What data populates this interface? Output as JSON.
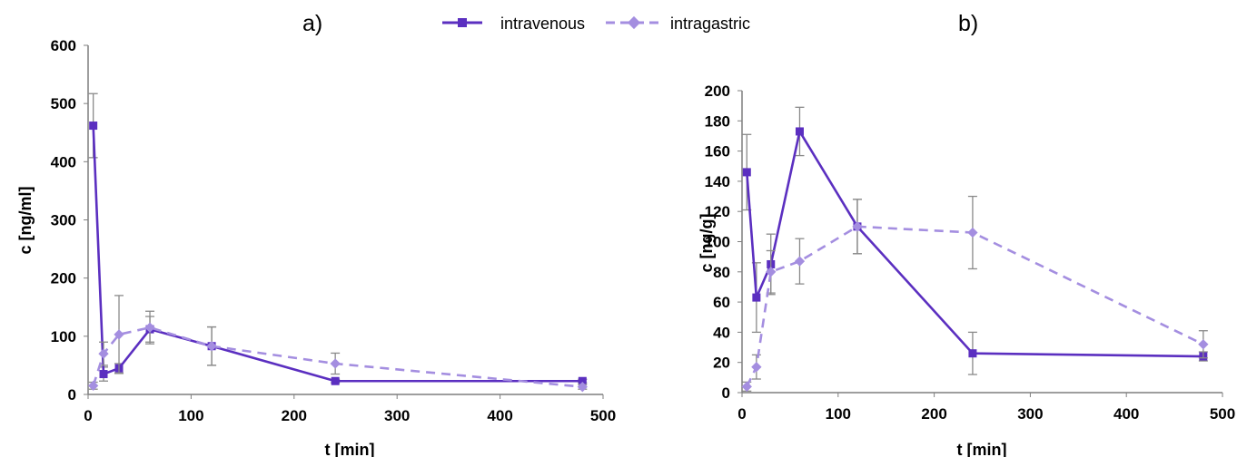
{
  "legend": {
    "entries": [
      {
        "label": "intravenous",
        "color": "#5b2fc0",
        "style": "solid",
        "marker": "square"
      },
      {
        "label": "intragastric",
        "color": "#a48ee0",
        "style": "dashed",
        "marker": "diamond"
      }
    ]
  },
  "chart_data": [
    {
      "type": "line",
      "panel_label": "a)",
      "xlabel": "t [min]",
      "ylabel": "c [ng/ml]",
      "xlim": [
        0,
        500
      ],
      "ylim": [
        0,
        600
      ],
      "xticks": [
        0,
        100,
        200,
        300,
        400,
        500
      ],
      "yticks": [
        0,
        100,
        200,
        300,
        400,
        500,
        600
      ],
      "grid": false,
      "series": [
        {
          "name": "intravenous",
          "color": "#5b2fc0",
          "style": "solid",
          "marker": "square",
          "x": [
            5,
            15,
            30,
            60,
            120,
            240,
            480
          ],
          "y": [
            462,
            35,
            45,
            112,
            83,
            23,
            23
          ],
          "err": [
            55,
            12,
            8,
            22,
            33,
            3,
            3
          ]
        },
        {
          "name": "intragastric",
          "color": "#a48ee0",
          "style": "dashed",
          "marker": "diamond",
          "x": [
            5,
            15,
            30,
            60,
            120,
            240,
            480
          ],
          "y": [
            15,
            70,
            103,
            115,
            83,
            53,
            13
          ],
          "err": [
            6,
            20,
            67,
            28,
            33,
            18,
            4
          ]
        }
      ]
    },
    {
      "type": "line",
      "panel_label": "b)",
      "xlabel": "t [min]",
      "ylabel": "c [ng/g]",
      "xlim": [
        0,
        500
      ],
      "ylim": [
        0,
        200
      ],
      "xticks": [
        0,
        100,
        200,
        300,
        400,
        500
      ],
      "yticks": [
        0,
        20,
        40,
        60,
        80,
        100,
        120,
        140,
        160,
        180,
        200
      ],
      "grid": false,
      "series": [
        {
          "name": "intravenous",
          "color": "#5b2fc0",
          "style": "solid",
          "marker": "square",
          "x": [
            5,
            15,
            30,
            60,
            120,
            240,
            480
          ],
          "y": [
            146,
            63,
            85,
            173,
            110,
            26,
            24
          ],
          "err": [
            25,
            23,
            20,
            16,
            18,
            14,
            3
          ]
        },
        {
          "name": "intragastric",
          "color": "#a48ee0",
          "style": "dashed",
          "marker": "diamond",
          "x": [
            5,
            15,
            30,
            60,
            120,
            240,
            480
          ],
          "y": [
            4,
            17,
            80,
            87,
            110,
            106,
            32
          ],
          "err": [
            3,
            8,
            14,
            15,
            18,
            24,
            9
          ]
        }
      ]
    }
  ]
}
